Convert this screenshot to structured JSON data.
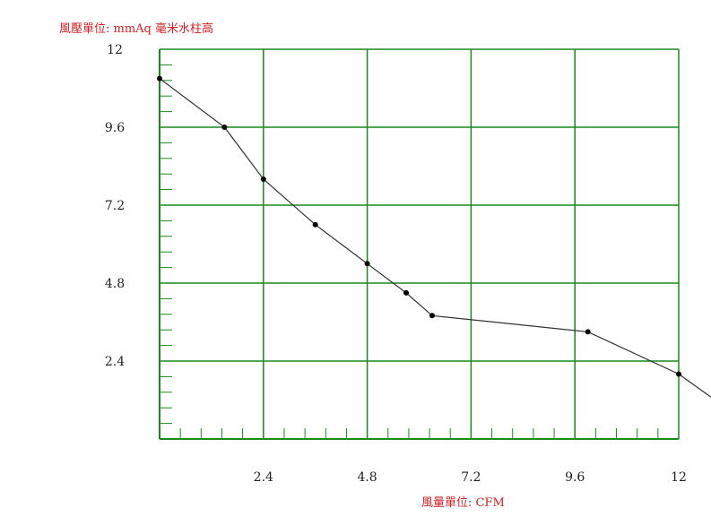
{
  "colors": {
    "grid": "#1a8a1a",
    "line": "#333333",
    "point": "#000000",
    "unit_text": "#d42020",
    "tick_text": "#222222"
  },
  "chart_data": {
    "type": "line",
    "ylabel": "風壓單位:   mmAq 毫米水柱高",
    "xlabel": "風量單位:   CFM",
    "xlim": [
      0,
      12
    ],
    "ylim": [
      0,
      12
    ],
    "x_ticks": [
      2.4,
      4.8,
      7.2,
      9.6,
      12
    ],
    "y_ticks": [
      2.4,
      4.8,
      7.2,
      9.6,
      12
    ],
    "x_tick_labels": [
      "2.4",
      "4.8",
      "7.2",
      "9.6",
      "12"
    ],
    "y_tick_labels": [
      "2.4",
      "4.8",
      "7.2",
      "9.6",
      "12"
    ],
    "grid": true,
    "series": [
      {
        "x": [
          0,
          1.5,
          2.4,
          3.6,
          4.8,
          5.7,
          6.3,
          9.9,
          12.0,
          14.1
        ],
        "y": [
          11.1,
          9.6,
          8.0,
          6.6,
          5.4,
          4.5,
          3.8,
          3.3,
          2.0,
          0.0
        ]
      }
    ]
  }
}
